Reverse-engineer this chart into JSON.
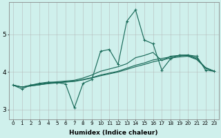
{
  "xlabel": "Humidex (Indice chaleur)",
  "ylabel": "",
  "bg_color": "#cff0ec",
  "line_color": "#1a6b5a",
  "grid_color": "#b0b0b0",
  "xlim": [
    -0.5,
    23.5
  ],
  "ylim": [
    2.75,
    5.85
  ],
  "yticks": [
    3,
    4,
    5
  ],
  "xticks": [
    0,
    1,
    2,
    3,
    4,
    5,
    6,
    7,
    8,
    9,
    10,
    11,
    12,
    13,
    14,
    15,
    16,
    17,
    18,
    19,
    20,
    21,
    22,
    23
  ],
  "lines": [
    [
      3.65,
      3.55,
      3.65,
      3.7,
      3.73,
      3.72,
      3.68,
      3.05,
      3.7,
      3.8,
      4.55,
      4.6,
      4.2,
      5.35,
      5.65,
      4.85,
      4.75,
      4.05,
      4.35,
      4.45,
      4.45,
      4.42,
      4.05,
      4.02
    ],
    [
      3.65,
      3.6,
      3.65,
      3.68,
      3.72,
      3.74,
      3.76,
      3.78,
      3.84,
      3.92,
      4.02,
      4.08,
      4.14,
      4.22,
      4.38,
      4.44,
      4.52,
      4.3,
      4.42,
      4.44,
      4.45,
      4.38,
      4.1,
      4.02
    ],
    [
      3.65,
      3.6,
      3.63,
      3.66,
      3.7,
      3.72,
      3.74,
      3.76,
      3.8,
      3.85,
      3.92,
      3.97,
      4.02,
      4.1,
      4.18,
      4.24,
      4.32,
      4.36,
      4.4,
      4.43,
      4.44,
      4.35,
      4.12,
      4.02
    ],
    [
      3.65,
      3.6,
      3.63,
      3.66,
      3.69,
      3.71,
      3.73,
      3.75,
      3.79,
      3.84,
      3.9,
      3.95,
      4.0,
      4.07,
      4.14,
      4.2,
      4.27,
      4.32,
      4.37,
      4.4,
      4.42,
      4.33,
      4.11,
      4.02
    ]
  ]
}
